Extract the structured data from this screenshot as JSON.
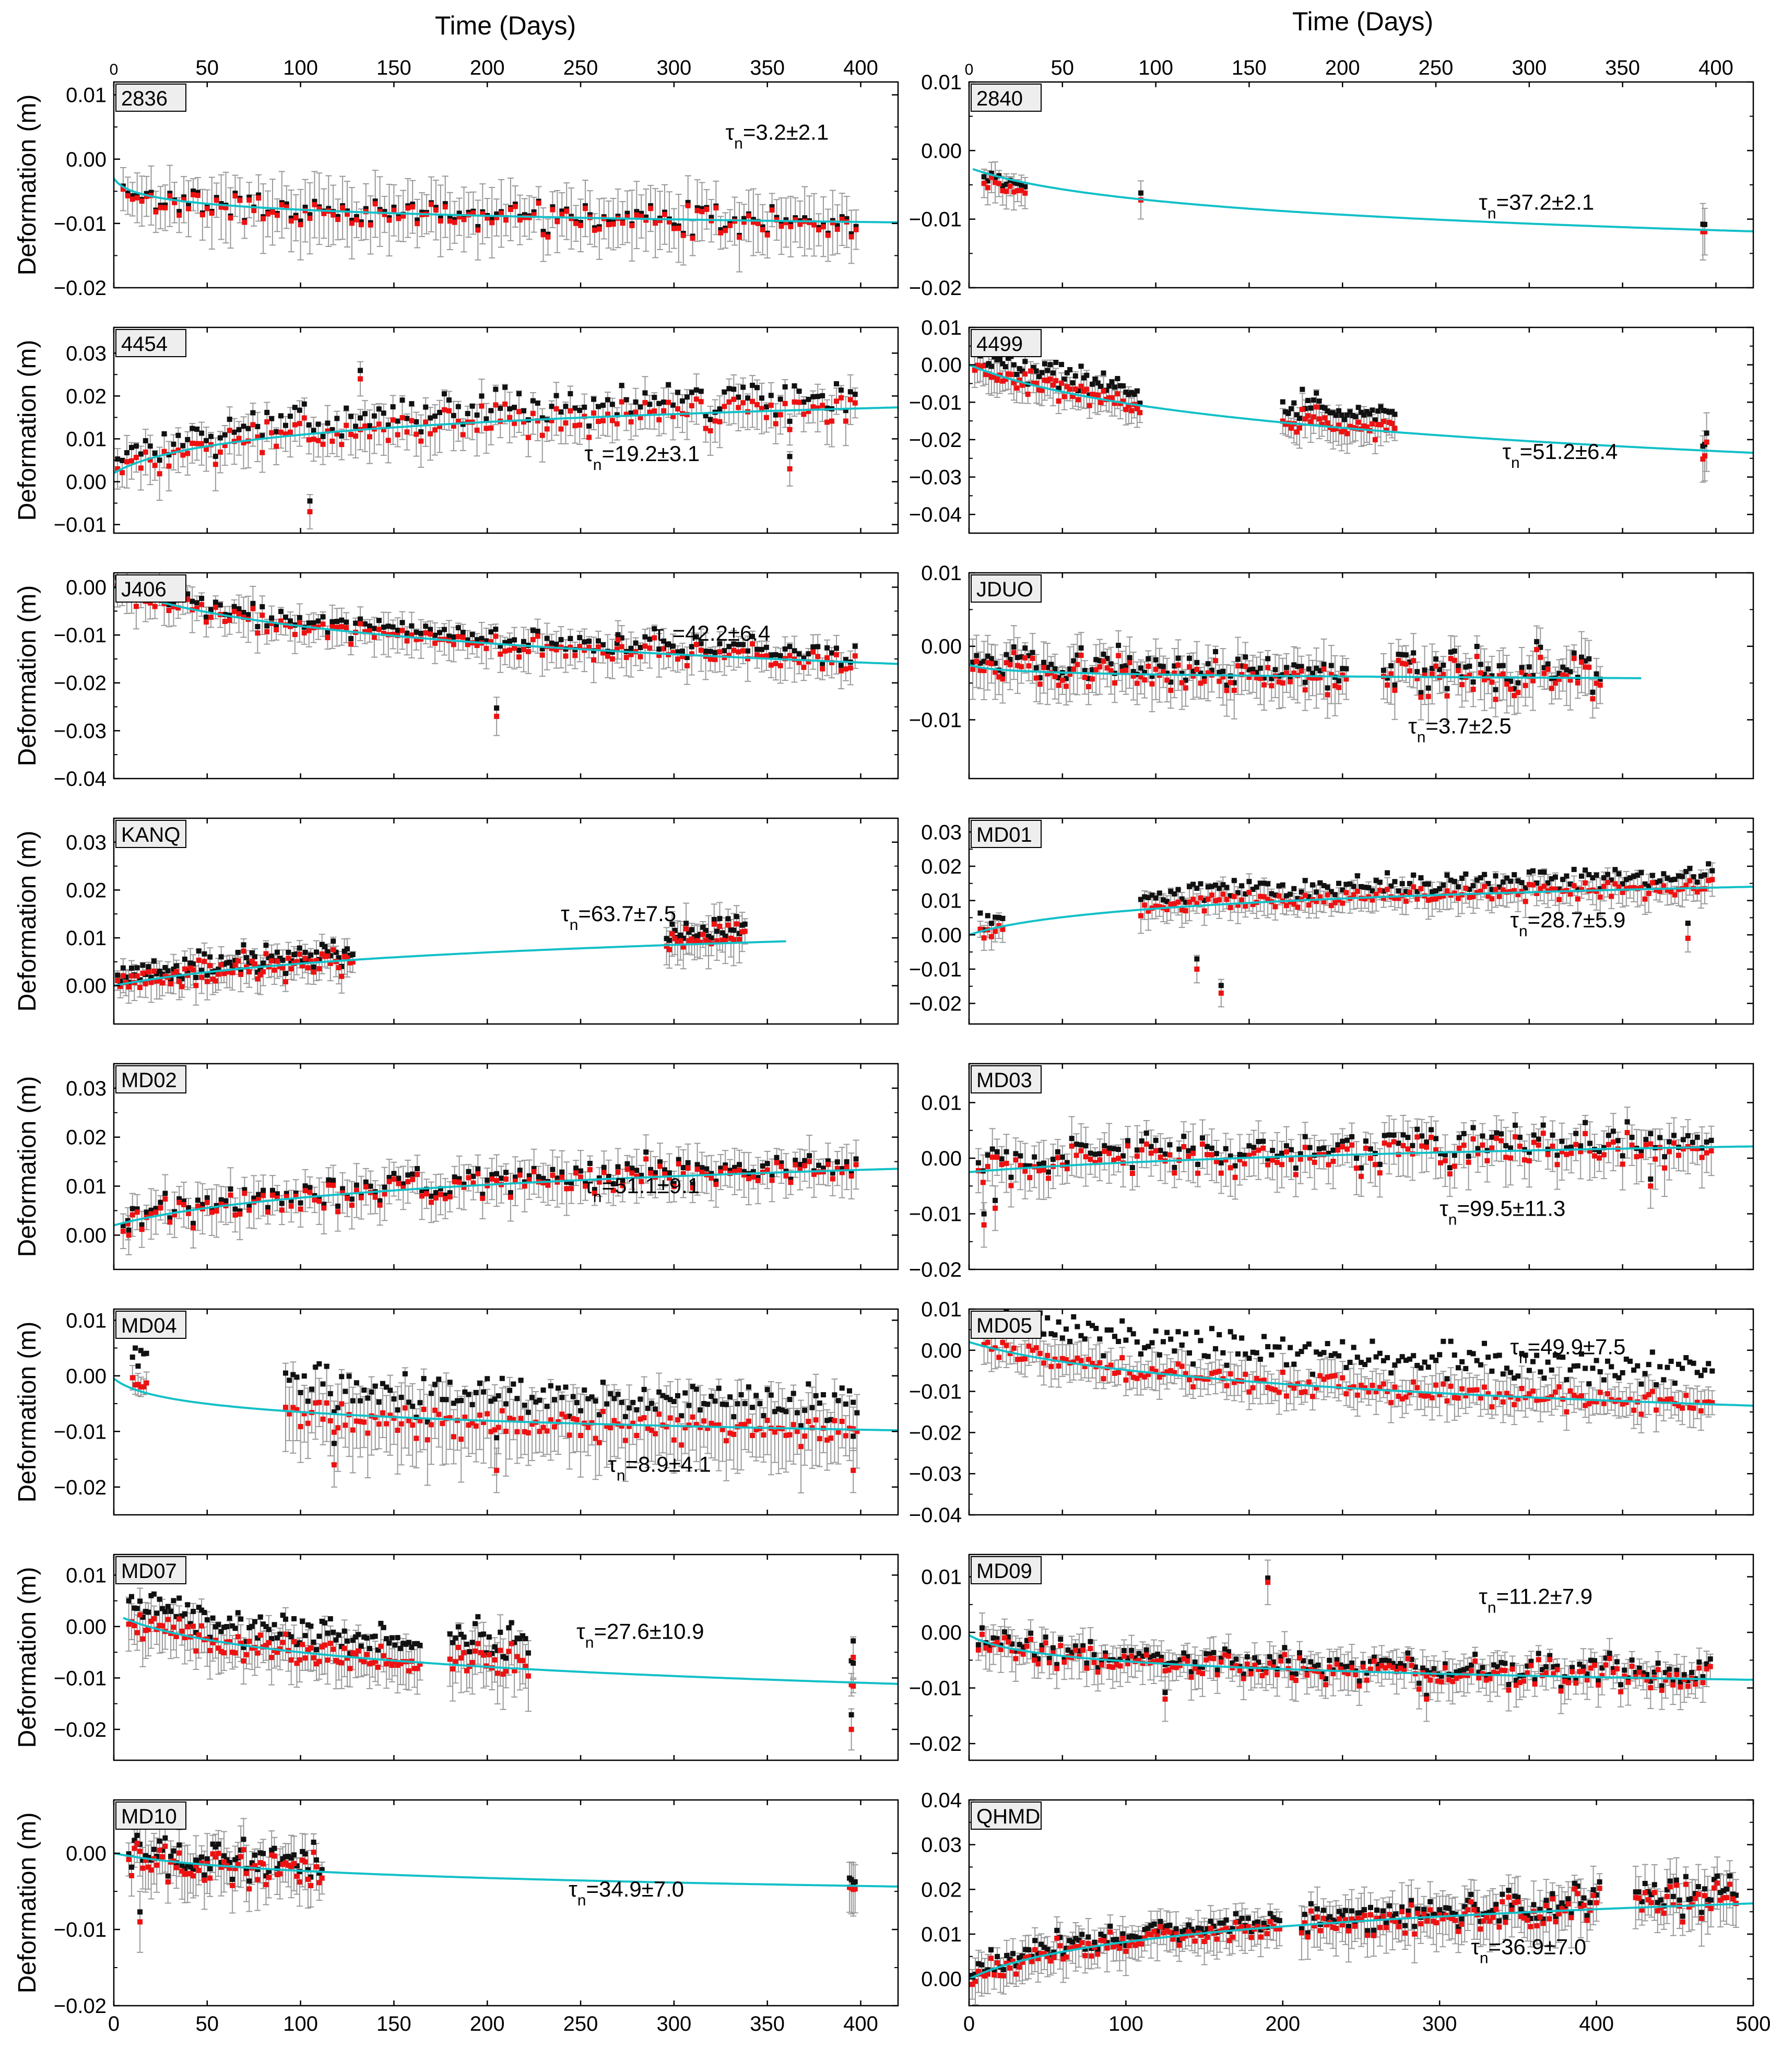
{
  "figure": {
    "top_axis_title": "Time (Days)",
    "y_axis_title": "Deformation (m)",
    "colors": {
      "frame": "#000000",
      "fit": "#12C0C8",
      "obs_red": "#EE1111",
      "obs_black": "#111111",
      "error_bar": "#999999",
      "label_box": "#EEEEEE"
    }
  },
  "chart_data": [
    {
      "type": "scatter",
      "column": "left",
      "row": 0,
      "station": "2836",
      "tau": "3.2±2.1",
      "tau_pos": [
        0.78,
        0.28
      ],
      "xlim": [
        0,
        420
      ],
      "ylim": [
        -0.02,
        0.012
      ],
      "yticks": [
        -0.02,
        -0.01,
        0.0,
        0.01
      ],
      "y_decimals": 2,
      "top_xticks": [
        0,
        50,
        100,
        150,
        200,
        250,
        300,
        350,
        400
      ],
      "bottom_xticks": null,
      "fit": {
        "start": 0,
        "end": 420,
        "y0": -0.003,
        "amp": -0.0014,
        "tau": 3.2,
        "t_ref": 0
      },
      "obs": [
        {
          "start": 5,
          "end": 398,
          "step": 2.5,
          "y_offset": -0.0004,
          "noise": 0.0024,
          "err": 0.004
        }
      ],
      "black_shift": 0.0004,
      "outliers": []
    },
    {
      "type": "scatter",
      "column": "right",
      "row": 0,
      "station": "2840",
      "tau": "37.2±2.1",
      "tau_pos": [
        0.65,
        0.62
      ],
      "xlim": [
        0,
        420
      ],
      "ylim": [
        -0.02,
        0.01
      ],
      "yticks": [
        -0.02,
        -0.01,
        0.0,
        0.01
      ],
      "y_decimals": 2,
      "top_xticks": [
        0,
        50,
        100,
        150,
        200,
        250,
        300,
        350,
        400
      ],
      "bottom_xticks": null,
      "fit": {
        "start": 2,
        "end": 420,
        "y0": -0.0025,
        "amp": -0.0037,
        "tau": 37.2,
        "t_ref": 0
      },
      "obs": [
        {
          "start": 8,
          "end": 30,
          "step": 2,
          "y_offset": -0.001,
          "noise": 0.0015,
          "err": 0.0022
        },
        {
          "start": 92,
          "end": 92,
          "step": 1,
          "y_offset": -0.0002,
          "noise": 0.0002,
          "err": 0.0035
        },
        {
          "start": 393,
          "end": 394,
          "step": 1,
          "y_offset": 0,
          "noise": 0.001,
          "err": 0.004
        }
      ],
      "black_shift": 0.001,
      "outliers": []
    },
    {
      "type": "scatter",
      "column": "left",
      "row": 1,
      "station": "4454",
      "tau": "19.2±3.1",
      "tau_pos": [
        0.6,
        0.65
      ],
      "xlim": [
        0,
        420
      ],
      "ylim": [
        -0.012,
        0.036
      ],
      "yticks": [
        -0.01,
        0.0,
        0.01,
        0.02,
        0.03
      ],
      "y_decimals": 2,
      "top_xticks": null,
      "bottom_xticks": null,
      "fit": {
        "start": 0,
        "end": 420,
        "y0": 0.002,
        "amp": 0.0049,
        "tau": 19.2,
        "t_ref": 0
      },
      "obs": [
        {
          "start": 2,
          "end": 398,
          "step": 2.5,
          "y_offset": 0,
          "noise": 0.0042,
          "err": 0.0045
        }
      ],
      "black_shift": 0.003,
      "outliers": [
        [
          105,
          -0.007
        ],
        [
          132,
          0.024
        ],
        [
          362,
          0.003
        ]
      ]
    },
    {
      "type": "scatter",
      "column": "right",
      "row": 1,
      "station": "4499",
      "tau": "51.2±6.4",
      "tau_pos": [
        0.68,
        0.64
      ],
      "xlim": [
        0,
        420
      ],
      "ylim": [
        -0.045,
        0.01
      ],
      "yticks": [
        -0.04,
        -0.03,
        -0.02,
        -0.01,
        0.0,
        0.01
      ],
      "y_decimals": 2,
      "top_xticks": null,
      "bottom_xticks": null,
      "fit": {
        "start": 0,
        "end": 420,
        "y0": 0,
        "amp": -0.0106,
        "tau": 51.2,
        "t_ref": 0
      },
      "obs": [
        {
          "start": 3,
          "end": 92,
          "step": 1.5,
          "y_offset": 0,
          "noise": 0.003,
          "err": 0.004
        },
        {
          "start": 168,
          "end": 228,
          "step": 1.5,
          "y_offset": 0.001,
          "noise": 0.0035,
          "err": 0.004
        },
        {
          "start": 393,
          "end": 395,
          "step": 1,
          "y_offset": 0,
          "noise": 0.005,
          "err": 0.006
        }
      ],
      "black_shift": 0.004,
      "outliers": []
    },
    {
      "type": "scatter",
      "column": "left",
      "row": 2,
      "station": "J406",
      "tau": "42.2±6.4",
      "tau_pos": [
        0.69,
        0.33
      ],
      "xlim": [
        0,
        420
      ],
      "ylim": [
        -0.04,
        0.003
      ],
      "yticks": [
        -0.04,
        -0.03,
        -0.02,
        -0.01,
        0.0
      ],
      "y_decimals": 2,
      "top_xticks": null,
      "bottom_xticks": null,
      "fit": {
        "start": 0,
        "end": 420,
        "y0": 0,
        "amp": -0.0067,
        "tau": 42.2,
        "t_ref": 0
      },
      "obs": [
        {
          "start": 2,
          "end": 398,
          "step": 2.5,
          "y_offset": 0,
          "noise": 0.0026,
          "err": 0.0035
        }
      ],
      "black_shift": 0.0015,
      "outliers": [
        [
          205,
          -0.027
        ],
        [
          270,
          -0.011
        ]
      ]
    },
    {
      "type": "scatter",
      "column": "right",
      "row": 2,
      "station": "JDUO",
      "tau": "3.7±2.5",
      "tau_pos": [
        0.56,
        0.78
      ],
      "xlim": [
        0,
        420
      ],
      "ylim": [
        -0.018,
        0.01
      ],
      "yticks": [
        -0.01,
        0.0,
        0.01
      ],
      "y_decimals": 2,
      "top_xticks": null,
      "bottom_xticks": null,
      "fit": {
        "start": 0,
        "end": 360,
        "y0": -0.0025,
        "amp": -0.0004,
        "tau": 3.7,
        "t_ref": 0
      },
      "obs": [
        {
          "start": 2,
          "end": 202,
          "step": 2,
          "y_offset": 0,
          "noise": 0.0026,
          "err": 0.003
        },
        {
          "start": 222,
          "end": 338,
          "step": 2,
          "y_offset": 0.0002,
          "noise": 0.0032,
          "err": 0.003
        }
      ],
      "black_shift": 0.001,
      "outliers": []
    },
    {
      "type": "scatter",
      "column": "left",
      "row": 3,
      "station": "KANQ",
      "tau": "63.7±7.5",
      "tau_pos": [
        0.57,
        0.5
      ],
      "xlim": [
        0,
        420
      ],
      "ylim": [
        -0.008,
        0.035
      ],
      "yticks": [
        0.0,
        0.01,
        0.02,
        0.03
      ],
      "y_decimals": 2,
      "top_xticks": null,
      "bottom_xticks": null,
      "fit": {
        "start": 0,
        "end": 360,
        "y0": 0,
        "amp": 0.0049,
        "tau": 63.7,
        "t_ref": 0
      },
      "obs": [
        {
          "start": 2,
          "end": 128,
          "step": 1.5,
          "y_offset": 0,
          "noise": 0.0028,
          "err": 0.003
        },
        {
          "start": 296,
          "end": 338,
          "step": 1.5,
          "y_offset": 0.001,
          "noise": 0.0035,
          "err": 0.004
        }
      ],
      "black_shift": 0.0015,
      "outliers": []
    },
    {
      "type": "scatter",
      "column": "right",
      "row": 3,
      "station": "MD01",
      "tau": "28.7±5.9",
      "tau_pos": [
        0.69,
        0.53
      ],
      "xlim": [
        0,
        420
      ],
      "ylim": [
        -0.026,
        0.034
      ],
      "yticks": [
        -0.02,
        -0.01,
        0.0,
        0.01,
        0.02,
        0.03
      ],
      "y_decimals": 2,
      "top_xticks": null,
      "bottom_xticks": null,
      "fit": {
        "start": 0,
        "end": 420,
        "y0": 0,
        "amp": 0.0051,
        "tau": 28.7,
        "t_ref": 0
      },
      "obs": [
        {
          "start": 6,
          "end": 18,
          "step": 2,
          "y_offset": -0.001,
          "noise": 0.002,
          "err": 0.003
        },
        {
          "start": 92,
          "end": 398,
          "step": 2,
          "y_offset": 0,
          "noise": 0.003,
          "err": 0.004
        }
      ],
      "black_shift": 0.0035,
      "outliers": [
        [
          122,
          -0.01
        ],
        [
          135,
          -0.017
        ],
        [
          385,
          -0.001
        ]
      ]
    },
    {
      "type": "scatter",
      "column": "left",
      "row": 4,
      "station": "MD02",
      "tau": "51.1±9.1",
      "tau_pos": [
        0.6,
        0.63
      ],
      "xlim": [
        0,
        420
      ],
      "ylim": [
        -0.007,
        0.035
      ],
      "yticks": [
        0.0,
        0.01,
        0.02,
        0.03
      ],
      "y_decimals": 2,
      "top_xticks": null,
      "bottom_xticks": null,
      "fit": {
        "start": 0,
        "end": 420,
        "y0": 0.002,
        "amp": 0.0052,
        "tau": 51.1,
        "t_ref": 0
      },
      "obs": [
        {
          "start": 5,
          "end": 398,
          "step": 2.5,
          "y_offset": 0,
          "noise": 0.0036,
          "err": 0.004
        }
      ],
      "black_shift": 0.001,
      "outliers": [
        [
          8,
          0
        ]
      ]
    },
    {
      "type": "scatter",
      "column": "right",
      "row": 4,
      "station": "MD03",
      "tau": "99.5±11.3",
      "tau_pos": [
        0.6,
        0.74
      ],
      "xlim": [
        0,
        420
      ],
      "ylim": [
        -0.02,
        0.017
      ],
      "yticks": [
        -0.02,
        -0.01,
        0.0,
        0.01
      ],
      "y_decimals": 2,
      "top_xticks": null,
      "bottom_xticks": null,
      "fit": {
        "start": 0,
        "end": 420,
        "y0": -0.0025,
        "amp": 0.0028,
        "tau": 99.5,
        "t_ref": 0
      },
      "obs": [
        {
          "start": 5,
          "end": 398,
          "step": 2.5,
          "y_offset": 0,
          "noise": 0.0038,
          "err": 0.004
        }
      ],
      "black_shift": 0.0015,
      "outliers": [
        [
          8,
          -0.012
        ],
        [
          14,
          -0.009
        ],
        [
          365,
          -0.005
        ]
      ]
    },
    {
      "type": "scatter",
      "column": "left",
      "row": 5,
      "station": "MD04",
      "tau": "8.9±4.1",
      "tau_pos": [
        0.63,
        0.79
      ],
      "xlim": [
        0,
        420
      ],
      "ylim": [
        -0.025,
        0.012
      ],
      "yticks": [
        -0.02,
        -0.01,
        0.0,
        0.01
      ],
      "y_decimals": 2,
      "top_xticks": null,
      "bottom_xticks": null,
      "fit": {
        "start": 0,
        "end": 420,
        "y0": -0.0005,
        "amp": -0.0024,
        "tau": 8.9,
        "t_ref": 0
      },
      "obs": [
        {
          "start": 10,
          "end": 18,
          "step": 1.5,
          "y_offset": 0.001,
          "noise": 0.0018,
          "err": 0.002
        },
        {
          "start": 92,
          "end": 398,
          "step": 2,
          "y_offset": -0.0005,
          "noise": 0.003,
          "err": 0.006
        }
      ],
      "black_shift": 0.005,
      "outliers": [
        [
          118,
          -0.016
        ],
        [
          205,
          -0.017
        ],
        [
          396,
          -0.017
        ]
      ]
    },
    {
      "type": "scatter",
      "column": "right",
      "row": 5,
      "station": "MD05",
      "tau": "49.9±7.5",
      "tau_pos": [
        0.69,
        0.22
      ],
      "xlim": [
        0,
        420
      ],
      "ylim": [
        -0.04,
        0.01
      ],
      "yticks": [
        -0.04,
        -0.03,
        -0.02,
        -0.01,
        0.0,
        0.01
      ],
      "y_decimals": 2,
      "top_xticks": null,
      "bottom_xticks": null,
      "fit": {
        "start": 0,
        "end": 420,
        "y0": 0.002,
        "amp": -0.0069,
        "tau": 49.9,
        "t_ref": 0
      },
      "obs": [
        {
          "start": 8,
          "end": 398,
          "step": 2,
          "y_offset": 0,
          "noise": 0.003,
          "err": 0.004
        }
      ],
      "black_shift": 0.008,
      "outliers": []
    },
    {
      "type": "scatter",
      "column": "left",
      "row": 6,
      "station": "MD07",
      "tau": "27.6±10.9",
      "tau_pos": [
        0.59,
        0.41
      ],
      "xlim": [
        0,
        420
      ],
      "ylim": [
        -0.026,
        0.014
      ],
      "yticks": [
        -0.02,
        -0.01,
        0.0,
        0.01
      ],
      "y_decimals": 2,
      "top_xticks": null,
      "bottom_xticks": null,
      "fit": {
        "start": 5,
        "end": 420,
        "y0": 0.0025,
        "amp": -0.0049,
        "tau": 27.6,
        "t_ref": 0
      },
      "obs": [
        {
          "start": 8,
          "end": 165,
          "step": 1.5,
          "y_offset": 0,
          "noise": 0.003,
          "err": 0.004
        },
        {
          "start": 180,
          "end": 222,
          "step": 1.5,
          "y_offset": 0.001,
          "noise": 0.004,
          "err": 0.005
        },
        {
          "start": 395,
          "end": 396,
          "step": 1,
          "y_offset": 0,
          "noise": 0.002,
          "err": 0.002
        }
      ],
      "black_shift": 0.004,
      "outliers": [
        [
          395,
          -0.02
        ],
        [
          396,
          -0.006
        ]
      ]
    },
    {
      "type": "scatter",
      "column": "right",
      "row": 6,
      "station": "MD09",
      "tau": "11.2±7.9",
      "tau_pos": [
        0.65,
        0.24
      ],
      "xlim": [
        0,
        420
      ],
      "ylim": [
        -0.023,
        0.014
      ],
      "yticks": [
        -0.02,
        -0.01,
        0.0,
        0.01
      ],
      "y_decimals": 2,
      "top_xticks": null,
      "bottom_xticks": null,
      "fit": {
        "start": 0,
        "end": 420,
        "y0": -0.0005,
        "amp": -0.0022,
        "tau": 11.2,
        "t_ref": 0
      },
      "obs": [
        {
          "start": 5,
          "end": 398,
          "step": 2,
          "y_offset": 0,
          "noise": 0.0028,
          "err": 0.003
        }
      ],
      "black_shift": 0.001,
      "outliers": [
        [
          160,
          0.009
        ],
        [
          105,
          -0.012
        ],
        [
          245,
          -0.012
        ]
      ]
    },
    {
      "type": "scatter",
      "column": "left",
      "row": 7,
      "station": "MD10",
      "tau": "34.9±7.0",
      "tau_pos": [
        0.58,
        0.47
      ],
      "xlim": [
        0,
        420
      ],
      "ylim": [
        -0.02,
        0.007
      ],
      "yticks": [
        -0.02,
        -0.01,
        0.0
      ],
      "y_decimals": 2,
      "top_xticks": null,
      "bottom_xticks": [
        0,
        50,
        100,
        150,
        200,
        250,
        300,
        350,
        400
      ],
      "fit": {
        "start": 0,
        "end": 420,
        "y0": 0,
        "amp": -0.0017,
        "tau": 34.9,
        "t_ref": 0
      },
      "obs": [
        {
          "start": 8,
          "end": 112,
          "step": 1.5,
          "y_offset": 0,
          "noise": 0.0028,
          "err": 0.003
        },
        {
          "start": 394,
          "end": 397,
          "step": 1,
          "y_offset": 0,
          "noise": 0.0015,
          "err": 0.0025
        }
      ],
      "black_shift": 0.001,
      "outliers": [
        [
          14,
          -0.009
        ]
      ]
    },
    {
      "type": "scatter",
      "column": "right",
      "row": 7,
      "station": "QHMD",
      "tau": "36.9±7.0",
      "tau_pos": [
        0.64,
        0.75
      ],
      "xlim": [
        0,
        500
      ],
      "ylim": [
        -0.006,
        0.04
      ],
      "yticks": [
        0.0,
        0.01,
        0.02,
        0.03,
        0.04
      ],
      "y_decimals": 2,
      "top_xticks": null,
      "bottom_xticks": [
        0,
        100,
        200,
        300,
        400,
        500
      ],
      "fit": {
        "start": 0,
        "end": 500,
        "y0": 0,
        "amp": 0.0063,
        "tau": 36.9,
        "t_ref": 0
      },
      "obs": [
        {
          "start": 2,
          "end": 198,
          "step": 2,
          "y_offset": 0,
          "noise": 0.0028,
          "err": 0.004
        },
        {
          "start": 212,
          "end": 402,
          "step": 2,
          "y_offset": 0,
          "noise": 0.004,
          "err": 0.005
        },
        {
          "start": 425,
          "end": 490,
          "step": 2,
          "y_offset": 0.001,
          "noise": 0.0045,
          "err": 0.005
        }
      ],
      "black_shift": 0.0015,
      "outliers": []
    }
  ]
}
